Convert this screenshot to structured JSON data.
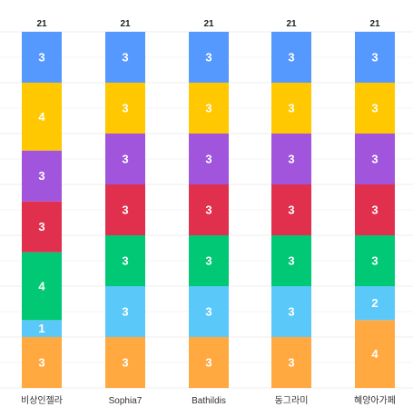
{
  "chart_data": {
    "type": "bar",
    "stacked": true,
    "categories": [
      "비상인젤라",
      "Sophia7",
      "Bathildis",
      "동그라미",
      "혜양아가페"
    ],
    "ylim": [
      0,
      21
    ],
    "grid": true,
    "totals": [
      21,
      21,
      21,
      21,
      21
    ],
    "series": [
      {
        "color": "#ffa940",
        "values": [
          3,
          3,
          3,
          3,
          4
        ]
      },
      {
        "color": "#5bc8fa",
        "values": [
          1,
          3,
          3,
          3,
          2
        ]
      },
      {
        "color": "#00c874",
        "values": [
          4,
          3,
          3,
          3,
          3
        ]
      },
      {
        "color": "#e0304e",
        "values": [
          3,
          3,
          3,
          3,
          3
        ]
      },
      {
        "color": "#a055dc",
        "values": [
          3,
          3,
          3,
          3,
          3
        ]
      },
      {
        "color": "#ffc800",
        "values": [
          4,
          3,
          3,
          3,
          3
        ]
      },
      {
        "color": "#5599ff",
        "values": [
          3,
          3,
          3,
          3,
          3
        ]
      }
    ]
  }
}
